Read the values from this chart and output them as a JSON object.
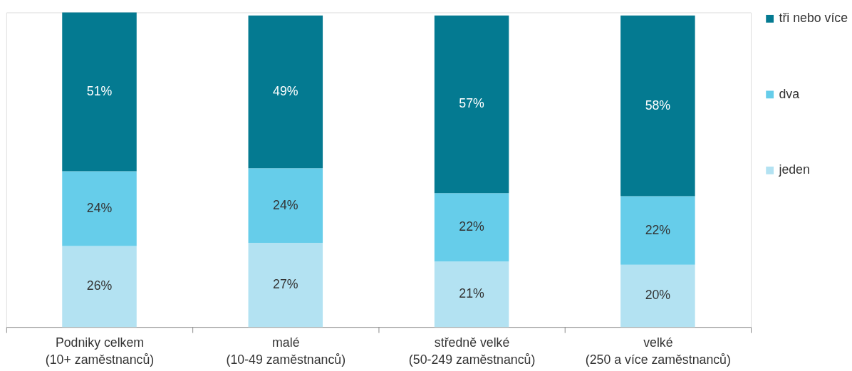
{
  "chart_data": {
    "type": "bar",
    "stacked": true,
    "legend": "right",
    "tick_labels": "x",
    "categories": [
      "Podniky celkem\n(10+ zaměstnanců)",
      "malé\n(10-49 zaměstnanců)",
      "středně velké\n(50-249 zaměstnanců)",
      "velké\n(250 a více zaměstnanců)"
    ],
    "series": [
      {
        "name": "jeden",
        "color": "#b3e2f2",
        "values": [
          26,
          27,
          21,
          20
        ],
        "value_labels": [
          "26%",
          "27%",
          "21%",
          "20%"
        ]
      },
      {
        "name": "dva",
        "color": "#66cdea",
        "values": [
          24,
          24,
          22,
          22
        ],
        "value_labels": [
          "24%",
          "24%",
          "22%",
          "22%"
        ]
      },
      {
        "name": "tři nebo více",
        "color": "#047a91",
        "values": [
          51,
          49,
          57,
          58
        ],
        "value_labels": [
          "51%",
          "49%",
          "57%",
          "58%"
        ]
      }
    ]
  }
}
